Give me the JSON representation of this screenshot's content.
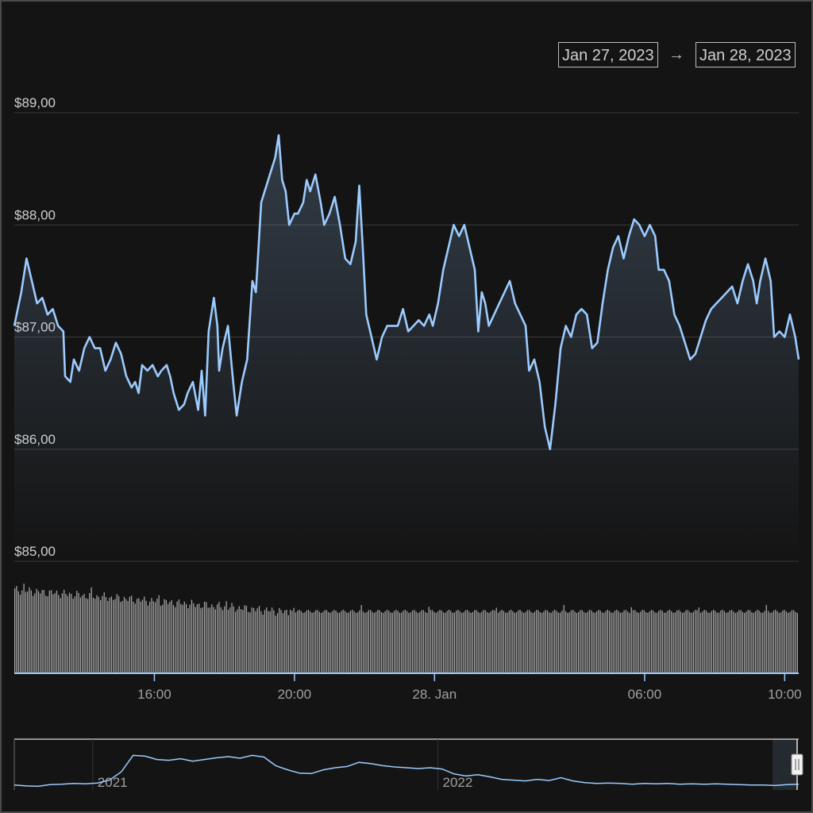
{
  "range_selector": {
    "from": "Jan 27, 2023",
    "to": "Jan 28, 2023",
    "arrow": "→"
  },
  "colors": {
    "background": "#141414",
    "line": "#9ccbff",
    "volume": "#a8a8a8",
    "grid": "#3a3a3a",
    "text": "#cfcfcf"
  },
  "chart_data": {
    "type": "line",
    "title": "",
    "xlabel": "",
    "ylabel": "",
    "ylim": [
      85,
      89
    ],
    "x_range_hours": [
      12.0,
      34.4
    ],
    "yticks": [
      {
        "value": 89,
        "label": "$89,00"
      },
      {
        "value": 88,
        "label": "$88,00"
      },
      {
        "value": 87,
        "label": "$87,00"
      },
      {
        "value": 86,
        "label": "$86,00"
      },
      {
        "value": 85,
        "label": "$85,00"
      }
    ],
    "xticks": [
      {
        "value": 16,
        "label": "16:00"
      },
      {
        "value": 20,
        "label": "20:00"
      },
      {
        "value": 24,
        "label": "28. Jan"
      },
      {
        "value": 30,
        "label": "06:00"
      },
      {
        "value": 34,
        "label": "10:00"
      }
    ],
    "grid": true,
    "price": [
      [
        12.0,
        87.1
      ],
      [
        12.2,
        87.4
      ],
      [
        12.35,
        87.7
      ],
      [
        12.5,
        87.5
      ],
      [
        12.65,
        87.3
      ],
      [
        12.8,
        87.35
      ],
      [
        12.95,
        87.2
      ],
      [
        13.1,
        87.25
      ],
      [
        13.25,
        87.1
      ],
      [
        13.4,
        87.05
      ],
      [
        13.45,
        86.65
      ],
      [
        13.6,
        86.6
      ],
      [
        13.7,
        86.8
      ],
      [
        13.85,
        86.7
      ],
      [
        14.0,
        86.9
      ],
      [
        14.15,
        87.0
      ],
      [
        14.3,
        86.9
      ],
      [
        14.45,
        86.9
      ],
      [
        14.6,
        86.7
      ],
      [
        14.75,
        86.8
      ],
      [
        14.9,
        86.95
      ],
      [
        15.05,
        86.85
      ],
      [
        15.2,
        86.65
      ],
      [
        15.35,
        86.55
      ],
      [
        15.45,
        86.6
      ],
      [
        15.55,
        86.5
      ],
      [
        15.65,
        86.75
      ],
      [
        15.8,
        86.7
      ],
      [
        15.95,
        86.75
      ],
      [
        16.1,
        86.65
      ],
      [
        16.2,
        86.7
      ],
      [
        16.35,
        86.75
      ],
      [
        16.45,
        86.65
      ],
      [
        16.55,
        86.5
      ],
      [
        16.7,
        86.35
      ],
      [
        16.85,
        86.4
      ],
      [
        16.95,
        86.5
      ],
      [
        17.1,
        86.6
      ],
      [
        17.25,
        86.35
      ],
      [
        17.35,
        86.7
      ],
      [
        17.45,
        86.3
      ],
      [
        17.55,
        87.05
      ],
      [
        17.7,
        87.35
      ],
      [
        17.8,
        87.1
      ],
      [
        17.85,
        86.7
      ],
      [
        17.95,
        86.9
      ],
      [
        18.1,
        87.1
      ],
      [
        18.25,
        86.6
      ],
      [
        18.35,
        86.3
      ],
      [
        18.5,
        86.6
      ],
      [
        18.65,
        86.8
      ],
      [
        18.8,
        87.5
      ],
      [
        18.9,
        87.4
      ],
      [
        19.05,
        88.2
      ],
      [
        19.2,
        88.35
      ],
      [
        19.35,
        88.5
      ],
      [
        19.45,
        88.6
      ],
      [
        19.55,
        88.8
      ],
      [
        19.65,
        88.4
      ],
      [
        19.75,
        88.3
      ],
      [
        19.85,
        88.0
      ],
      [
        20.0,
        88.1
      ],
      [
        20.1,
        88.1
      ],
      [
        20.25,
        88.2
      ],
      [
        20.35,
        88.4
      ],
      [
        20.45,
        88.3
      ],
      [
        20.6,
        88.45
      ],
      [
        20.75,
        88.2
      ],
      [
        20.85,
        88.0
      ],
      [
        21.0,
        88.1
      ],
      [
        21.15,
        88.25
      ],
      [
        21.3,
        88.0
      ],
      [
        21.45,
        87.7
      ],
      [
        21.6,
        87.65
      ],
      [
        21.75,
        87.85
      ],
      [
        21.85,
        88.35
      ],
      [
        21.95,
        87.8
      ],
      [
        22.05,
        87.2
      ],
      [
        22.2,
        87.0
      ],
      [
        22.35,
        86.8
      ],
      [
        22.5,
        87.0
      ],
      [
        22.65,
        87.1
      ],
      [
        22.8,
        87.1
      ],
      [
        22.95,
        87.1
      ],
      [
        23.1,
        87.25
      ],
      [
        23.25,
        87.05
      ],
      [
        23.4,
        87.1
      ],
      [
        23.55,
        87.15
      ],
      [
        23.7,
        87.1
      ],
      [
        23.85,
        87.2
      ],
      [
        23.95,
        87.1
      ],
      [
        24.1,
        87.3
      ],
      [
        24.25,
        87.6
      ],
      [
        24.4,
        87.8
      ],
      [
        24.55,
        88.0
      ],
      [
        24.7,
        87.9
      ],
      [
        24.85,
        88.0
      ],
      [
        25.0,
        87.8
      ],
      [
        25.15,
        87.6
      ],
      [
        25.25,
        87.05
      ],
      [
        25.35,
        87.4
      ],
      [
        25.45,
        87.3
      ],
      [
        25.55,
        87.1
      ],
      [
        25.7,
        87.2
      ],
      [
        25.85,
        87.3
      ],
      [
        26.0,
        87.4
      ],
      [
        26.15,
        87.5
      ],
      [
        26.3,
        87.3
      ],
      [
        26.45,
        87.2
      ],
      [
        26.6,
        87.1
      ],
      [
        26.7,
        86.7
      ],
      [
        26.85,
        86.8
      ],
      [
        27.0,
        86.6
      ],
      [
        27.15,
        86.2
      ],
      [
        27.3,
        86.0
      ],
      [
        27.45,
        86.4
      ],
      [
        27.6,
        86.9
      ],
      [
        27.75,
        87.1
      ],
      [
        27.9,
        87.0
      ],
      [
        28.05,
        87.2
      ],
      [
        28.2,
        87.25
      ],
      [
        28.35,
        87.2
      ],
      [
        28.5,
        86.9
      ],
      [
        28.65,
        86.95
      ],
      [
        28.8,
        87.3
      ],
      [
        28.95,
        87.6
      ],
      [
        29.1,
        87.8
      ],
      [
        29.25,
        87.9
      ],
      [
        29.4,
        87.7
      ],
      [
        29.55,
        87.9
      ],
      [
        29.7,
        88.05
      ],
      [
        29.85,
        88.0
      ],
      [
        30.0,
        87.9
      ],
      [
        30.15,
        88.0
      ],
      [
        30.3,
        87.9
      ],
      [
        30.4,
        87.6
      ],
      [
        30.55,
        87.6
      ],
      [
        30.7,
        87.5
      ],
      [
        30.85,
        87.2
      ],
      [
        31.0,
        87.1
      ],
      [
        31.15,
        86.95
      ],
      [
        31.3,
        86.8
      ],
      [
        31.45,
        86.85
      ],
      [
        31.6,
        87.0
      ],
      [
        31.75,
        87.15
      ],
      [
        31.9,
        87.25
      ],
      [
        32.05,
        87.3
      ],
      [
        32.2,
        87.35
      ],
      [
        32.35,
        87.4
      ],
      [
        32.5,
        87.45
      ],
      [
        32.65,
        87.3
      ],
      [
        32.8,
        87.5
      ],
      [
        32.95,
        87.65
      ],
      [
        33.1,
        87.5
      ],
      [
        33.2,
        87.3
      ],
      [
        33.3,
        87.5
      ],
      [
        33.45,
        87.7
      ],
      [
        33.6,
        87.5
      ],
      [
        33.7,
        87.0
      ],
      [
        33.85,
        87.05
      ],
      [
        34.0,
        87.0
      ],
      [
        34.15,
        87.2
      ],
      [
        34.3,
        87.0
      ],
      [
        34.4,
        86.8
      ]
    ],
    "volume_bars": 430,
    "navigator": {
      "labels": [
        "2021",
        "2022"
      ],
      "label_positions": [
        0.1,
        0.54
      ],
      "series": [
        0.08,
        0.06,
        0.05,
        0.09,
        0.1,
        0.12,
        0.11,
        0.13,
        0.2,
        0.4,
        0.8,
        0.78,
        0.7,
        0.68,
        0.72,
        0.66,
        0.7,
        0.74,
        0.77,
        0.73,
        0.8,
        0.76,
        0.55,
        0.45,
        0.37,
        0.36,
        0.45,
        0.5,
        0.53,
        0.63,
        0.6,
        0.55,
        0.52,
        0.5,
        0.48,
        0.5,
        0.47,
        0.35,
        0.3,
        0.33,
        0.28,
        0.22,
        0.2,
        0.18,
        0.22,
        0.19,
        0.26,
        0.18,
        0.14,
        0.12,
        0.13,
        0.12,
        0.1,
        0.12,
        0.11,
        0.12,
        0.1,
        0.11,
        0.1,
        0.11,
        0.1,
        0.09,
        0.08,
        0.08,
        0.07,
        0.09,
        0.1
      ]
    }
  }
}
